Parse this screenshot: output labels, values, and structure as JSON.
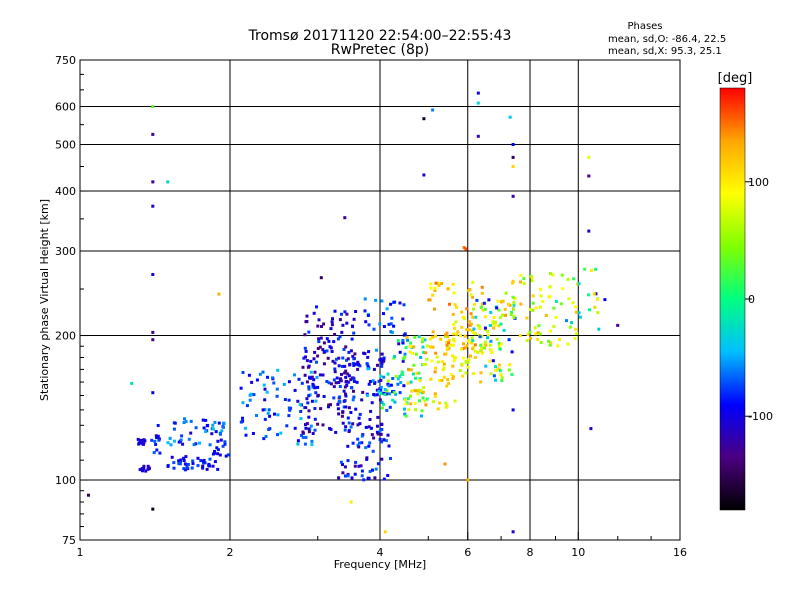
{
  "chart_data": {
    "type": "scatter",
    "title": "Tromsø 20171120 22:54:00–22:55:43",
    "subtitle": "RwPretec (8p)",
    "xlabel": "Frequency [MHz]",
    "ylabel": "Stationary phase Virtual Height [km]",
    "x_scale": "log",
    "y_scale": "log",
    "xlim": [
      1,
      16
    ],
    "ylim": [
      75,
      750
    ],
    "x_ticks": [
      {
        "value": 1,
        "label": "1"
      },
      {
        "value": 2,
        "label": "2"
      },
      {
        "value": 4,
        "label": "4"
      },
      {
        "value": 6,
        "label": "6"
      },
      {
        "value": 8,
        "label": "8"
      },
      {
        "value": 10,
        "label": "10"
      },
      {
        "value": 16,
        "label": "16"
      }
    ],
    "x_grid": [
      2,
      4,
      6,
      8,
      10
    ],
    "y_ticks": [
      {
        "value": 75,
        "label": "75"
      },
      {
        "value": 100,
        "label": "100"
      },
      {
        "value": 200,
        "label": "200"
      },
      {
        "value": 300,
        "label": "300"
      },
      {
        "value": 400,
        "label": "400"
      },
      {
        "value": 500,
        "label": "500"
      },
      {
        "value": 600,
        "label": "600"
      },
      {
        "value": 750,
        "label": "750"
      }
    ],
    "y_grid": [
      100,
      200,
      300,
      400,
      500,
      600
    ],
    "grid": true,
    "legend": {
      "title": "Phases",
      "lines": [
        "mean, sd,O: -86.4, 22.5",
        "mean, sd,X:  95.3, 25.1"
      ]
    },
    "colorbar": {
      "label": "[deg]",
      "range": [
        -180,
        180
      ],
      "ticks": [
        {
          "value": 100,
          "label": "100"
        },
        {
          "value": 0,
          "label": "0"
        },
        {
          "value": -100,
          "label": "-100"
        }
      ],
      "colormap": [
        "#000000",
        "#4b0082",
        "#0000ff",
        "#00bfff",
        "#00ff80",
        "#80ff00",
        "#ffff00",
        "#ffa500",
        "#ff0000"
      ]
    },
    "clusters": [
      {
        "f": [
          1.3,
          1.35
        ],
        "h": [
          118,
          122
        ],
        "phase": [
          -115,
          -90
        ],
        "n": 12
      },
      {
        "f": [
          1.32,
          1.38
        ],
        "h": [
          104,
          108
        ],
        "phase": [
          -115,
          -95
        ],
        "n": 10
      },
      {
        "f": [
          1.38,
          1.45
        ],
        "h": [
          110,
          130
        ],
        "phase": [
          -110,
          -60
        ],
        "n": 12
      },
      {
        "f": [
          1.5,
          1.9
        ],
        "h": [
          105,
          112
        ],
        "phase": [
          -110,
          -70
        ],
        "n": 40
      },
      {
        "f": [
          1.5,
          1.95
        ],
        "h": [
          118,
          135
        ],
        "phase": [
          -110,
          -40
        ],
        "n": 45
      },
      {
        "f": [
          1.85,
          2.0
        ],
        "h": [
          112,
          122
        ],
        "phase": [
          -100,
          -60
        ],
        "n": 14
      },
      {
        "f": [
          2.1,
          3.0
        ],
        "h": [
          118,
          170
        ],
        "phase": [
          -110,
          -40
        ],
        "n": 90
      },
      {
        "f": [
          2.8,
          3.6
        ],
        "h": [
          125,
          230
        ],
        "phase": [
          -140,
          -70
        ],
        "n": 150
      },
      {
        "f": [
          3.3,
          4.2
        ],
        "h": [
          100,
          185
        ],
        "phase": [
          -130,
          -60
        ],
        "n": 150
      },
      {
        "f": [
          3.7,
          4.5
        ],
        "h": [
          150,
          240
        ],
        "phase": [
          -110,
          -40
        ],
        "n": 60
      },
      {
        "f": [
          4.0,
          5.0
        ],
        "h": [
          135,
          200
        ],
        "phase": [
          -60,
          60
        ],
        "n": 60
      },
      {
        "f": [
          4.5,
          5.8
        ],
        "h": [
          140,
          200
        ],
        "phase": [
          60,
          140
        ],
        "n": 80
      },
      {
        "f": [
          5.0,
          6.5
        ],
        "h": [
          185,
          260
        ],
        "phase": [
          80,
          150
        ],
        "n": 60
      },
      {
        "f": [
          5.5,
          7.0
        ],
        "h": [
          160,
          220
        ],
        "phase": [
          60,
          130
        ],
        "n": 70
      },
      {
        "f": [
          6.0,
          7.5
        ],
        "h": [
          160,
          240
        ],
        "phase": [
          -100,
          140
        ],
        "n": 60
      },
      {
        "f": [
          7.0,
          10.0
        ],
        "h": [
          190,
          270
        ],
        "phase": [
          30,
          130
        ],
        "n": 70
      },
      {
        "f": [
          9.0,
          11.5
        ],
        "h": [
          200,
          280
        ],
        "phase": [
          -100,
          120
        ],
        "n": 20
      }
    ],
    "points": [
      {
        "f": 1.4,
        "h": 600,
        "phase": 30
      },
      {
        "f": 1.4,
        "h": 525,
        "phase": -130
      },
      {
        "f": 1.4,
        "h": 418,
        "phase": -120
      },
      {
        "f": 1.4,
        "h": 372,
        "phase": -110
      },
      {
        "f": 1.4,
        "h": 268,
        "phase": -100
      },
      {
        "f": 1.4,
        "h": 203,
        "phase": -120
      },
      {
        "f": 1.4,
        "h": 196,
        "phase": -130
      },
      {
        "f": 1.4,
        "h": 152,
        "phase": -90
      },
      {
        "f": 1.4,
        "h": 87,
        "phase": -170
      },
      {
        "f": 1.5,
        "h": 418,
        "phase": -30
      },
      {
        "f": 1.04,
        "h": 93,
        "phase": -150
      },
      {
        "f": 1.27,
        "h": 159,
        "phase": -20
      },
      {
        "f": 1.9,
        "h": 244,
        "phase": 130
      },
      {
        "f": 3.4,
        "h": 352,
        "phase": -120
      },
      {
        "f": 3.05,
        "h": 264,
        "phase": -150
      },
      {
        "f": 4.9,
        "h": 566,
        "phase": -170
      },
      {
        "f": 5.1,
        "h": 590,
        "phase": -60
      },
      {
        "f": 4.9,
        "h": 432,
        "phase": -110
      },
      {
        "f": 6.3,
        "h": 640,
        "phase": -100
      },
      {
        "f": 6.3,
        "h": 610,
        "phase": -30
      },
      {
        "f": 7.3,
        "h": 570,
        "phase": -40
      },
      {
        "f": 6.3,
        "h": 520,
        "phase": -120
      },
      {
        "f": 7.4,
        "h": 500,
        "phase": -90
      },
      {
        "f": 7.4,
        "h": 470,
        "phase": -150
      },
      {
        "f": 7.4,
        "h": 450,
        "phase": 110
      },
      {
        "f": 7.4,
        "h": 390,
        "phase": -120
      },
      {
        "f": 10.5,
        "h": 430,
        "phase": -130
      },
      {
        "f": 10.5,
        "h": 330,
        "phase": -110
      },
      {
        "f": 10.5,
        "h": 470,
        "phase": 80
      },
      {
        "f": 5.9,
        "h": 305,
        "phase": 150
      },
      {
        "f": 5.95,
        "h": 303,
        "phase": 160
      },
      {
        "f": 7.4,
        "h": 140,
        "phase": -100
      },
      {
        "f": 7.4,
        "h": 78,
        "phase": -110
      },
      {
        "f": 10.6,
        "h": 128,
        "phase": -110
      },
      {
        "f": 12.0,
        "h": 210,
        "phase": -130
      },
      {
        "f": 4.1,
        "h": 78,
        "phase": 110
      },
      {
        "f": 3.5,
        "h": 90,
        "phase": 100
      },
      {
        "f": 6.0,
        "h": 100,
        "phase": 130
      },
      {
        "f": 5.4,
        "h": 108,
        "phase": 140
      }
    ]
  }
}
